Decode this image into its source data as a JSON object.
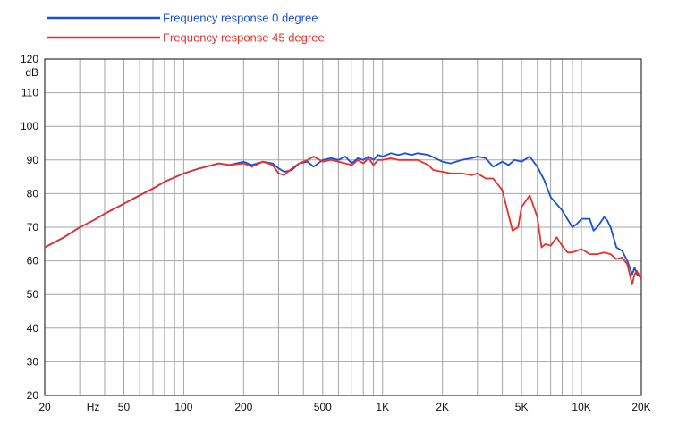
{
  "chart_data": {
    "type": "line",
    "title": "",
    "xlabel": "",
    "ylabel": "dB",
    "x_scale": "log",
    "xlim": [
      20,
      20000
    ],
    "ylim": [
      20,
      120
    ],
    "grid": true,
    "legend_position": "top-left",
    "x_tick_labels": [
      {
        "value": 20,
        "label": "20"
      },
      {
        "value": 35,
        "label": "Hz"
      },
      {
        "value": 50,
        "label": "50"
      },
      {
        "value": 100,
        "label": "100"
      },
      {
        "value": 200,
        "label": "200"
      },
      {
        "value": 500,
        "label": "500"
      },
      {
        "value": 1000,
        "label": "1K"
      },
      {
        "value": 2000,
        "label": "2K"
      },
      {
        "value": 5000,
        "label": "5K"
      },
      {
        "value": 10000,
        "label": "10K"
      },
      {
        "value": 20000,
        "label": "20K"
      }
    ],
    "y_tick_labels": [
      {
        "value": 20,
        "label": "20"
      },
      {
        "value": 30,
        "label": "30"
      },
      {
        "value": 40,
        "label": "40"
      },
      {
        "value": 50,
        "label": "50"
      },
      {
        "value": 60,
        "label": "60"
      },
      {
        "value": 70,
        "label": "70"
      },
      {
        "value": 80,
        "label": "80"
      },
      {
        "value": 90,
        "label": "90"
      },
      {
        "value": 100,
        "label": "100"
      },
      {
        "value": 110,
        "label": "110"
      },
      {
        "value": 120,
        "label": "120"
      }
    ],
    "series": [
      {
        "name": "Frequency response 0 degree",
        "color": "#1a4fd8",
        "points": [
          [
            20,
            64
          ],
          [
            25,
            67
          ],
          [
            30,
            70
          ],
          [
            35,
            72
          ],
          [
            40,
            74
          ],
          [
            50,
            77
          ],
          [
            60,
            79.5
          ],
          [
            70,
            81.5
          ],
          [
            80,
            83.5
          ],
          [
            100,
            86
          ],
          [
            120,
            87.5
          ],
          [
            150,
            89
          ],
          [
            170,
            88.5
          ],
          [
            200,
            89.5
          ],
          [
            220,
            88.5
          ],
          [
            250,
            89.5
          ],
          [
            280,
            89
          ],
          [
            300,
            87.5
          ],
          [
            320,
            86.5
          ],
          [
            350,
            87
          ],
          [
            380,
            89
          ],
          [
            420,
            89.5
          ],
          [
            450,
            88
          ],
          [
            500,
            90
          ],
          [
            550,
            90.5
          ],
          [
            600,
            90
          ],
          [
            650,
            91
          ],
          [
            700,
            89
          ],
          [
            750,
            90.5
          ],
          [
            800,
            90
          ],
          [
            850,
            91
          ],
          [
            900,
            90
          ],
          [
            950,
            91.5
          ],
          [
            1000,
            91
          ],
          [
            1100,
            92
          ],
          [
            1200,
            91.5
          ],
          [
            1300,
            92
          ],
          [
            1400,
            91.5
          ],
          [
            1500,
            92
          ],
          [
            1700,
            91.5
          ],
          [
            2000,
            89.5
          ],
          [
            2200,
            89
          ],
          [
            2500,
            90
          ],
          [
            2800,
            90.5
          ],
          [
            3000,
            91
          ],
          [
            3300,
            90.5
          ],
          [
            3600,
            88
          ],
          [
            4000,
            89.5
          ],
          [
            4300,
            88.5
          ],
          [
            4600,
            90
          ],
          [
            5000,
            89.5
          ],
          [
            5500,
            91
          ],
          [
            6000,
            88
          ],
          [
            6500,
            84
          ],
          [
            7000,
            79
          ],
          [
            8000,
            75
          ],
          [
            9000,
            70
          ],
          [
            9500,
            71
          ],
          [
            10000,
            72.5
          ],
          [
            11000,
            72.5
          ],
          [
            11500,
            69
          ],
          [
            12000,
            70
          ],
          [
            13000,
            73
          ],
          [
            13500,
            72
          ],
          [
            14000,
            70
          ],
          [
            15000,
            64
          ],
          [
            16000,
            63
          ],
          [
            17000,
            60
          ],
          [
            18000,
            56
          ],
          [
            18500,
            58
          ],
          [
            19000,
            56
          ],
          [
            20000,
            55
          ]
        ]
      },
      {
        "name": "Frequency response 45 degree",
        "color": "#e8302a",
        "points": [
          [
            20,
            64
          ],
          [
            25,
            67
          ],
          [
            30,
            70
          ],
          [
            35,
            72
          ],
          [
            40,
            74
          ],
          [
            50,
            77
          ],
          [
            60,
            79.5
          ],
          [
            70,
            81.5
          ],
          [
            80,
            83.5
          ],
          [
            100,
            86
          ],
          [
            120,
            87.5
          ],
          [
            150,
            89
          ],
          [
            170,
            88.5
          ],
          [
            200,
            89
          ],
          [
            220,
            88
          ],
          [
            250,
            89.5
          ],
          [
            280,
            88.5
          ],
          [
            300,
            86
          ],
          [
            320,
            85.5
          ],
          [
            350,
            87.5
          ],
          [
            380,
            89
          ],
          [
            420,
            90
          ],
          [
            450,
            91
          ],
          [
            500,
            89.5
          ],
          [
            550,
            90
          ],
          [
            600,
            89.5
          ],
          [
            650,
            89
          ],
          [
            700,
            88.5
          ],
          [
            750,
            90
          ],
          [
            800,
            89
          ],
          [
            850,
            90.5
          ],
          [
            900,
            88.5
          ],
          [
            950,
            90
          ],
          [
            1000,
            90
          ],
          [
            1100,
            90.5
          ],
          [
            1200,
            90
          ],
          [
            1400,
            90
          ],
          [
            1500,
            90
          ],
          [
            1700,
            88.5
          ],
          [
            1800,
            87
          ],
          [
            2000,
            86.5
          ],
          [
            2200,
            86
          ],
          [
            2500,
            86
          ],
          [
            2800,
            85.5
          ],
          [
            3000,
            86
          ],
          [
            3300,
            84.5
          ],
          [
            3600,
            84.5
          ],
          [
            4000,
            81
          ],
          [
            4200,
            76
          ],
          [
            4500,
            69
          ],
          [
            4800,
            70
          ],
          [
            5000,
            76
          ],
          [
            5500,
            79.5
          ],
          [
            6000,
            73
          ],
          [
            6300,
            64
          ],
          [
            6600,
            65
          ],
          [
            7000,
            64.5
          ],
          [
            7500,
            67
          ],
          [
            8000,
            64.5
          ],
          [
            8500,
            62.5
          ],
          [
            9000,
            62.5
          ],
          [
            10000,
            63.5
          ],
          [
            11000,
            62
          ],
          [
            12000,
            62
          ],
          [
            13000,
            62.5
          ],
          [
            14000,
            62
          ],
          [
            15000,
            60.5
          ],
          [
            16000,
            61
          ],
          [
            17000,
            59
          ],
          [
            18000,
            53
          ],
          [
            18500,
            56
          ],
          [
            19000,
            57
          ],
          [
            20000,
            54.5
          ]
        ]
      }
    ]
  }
}
